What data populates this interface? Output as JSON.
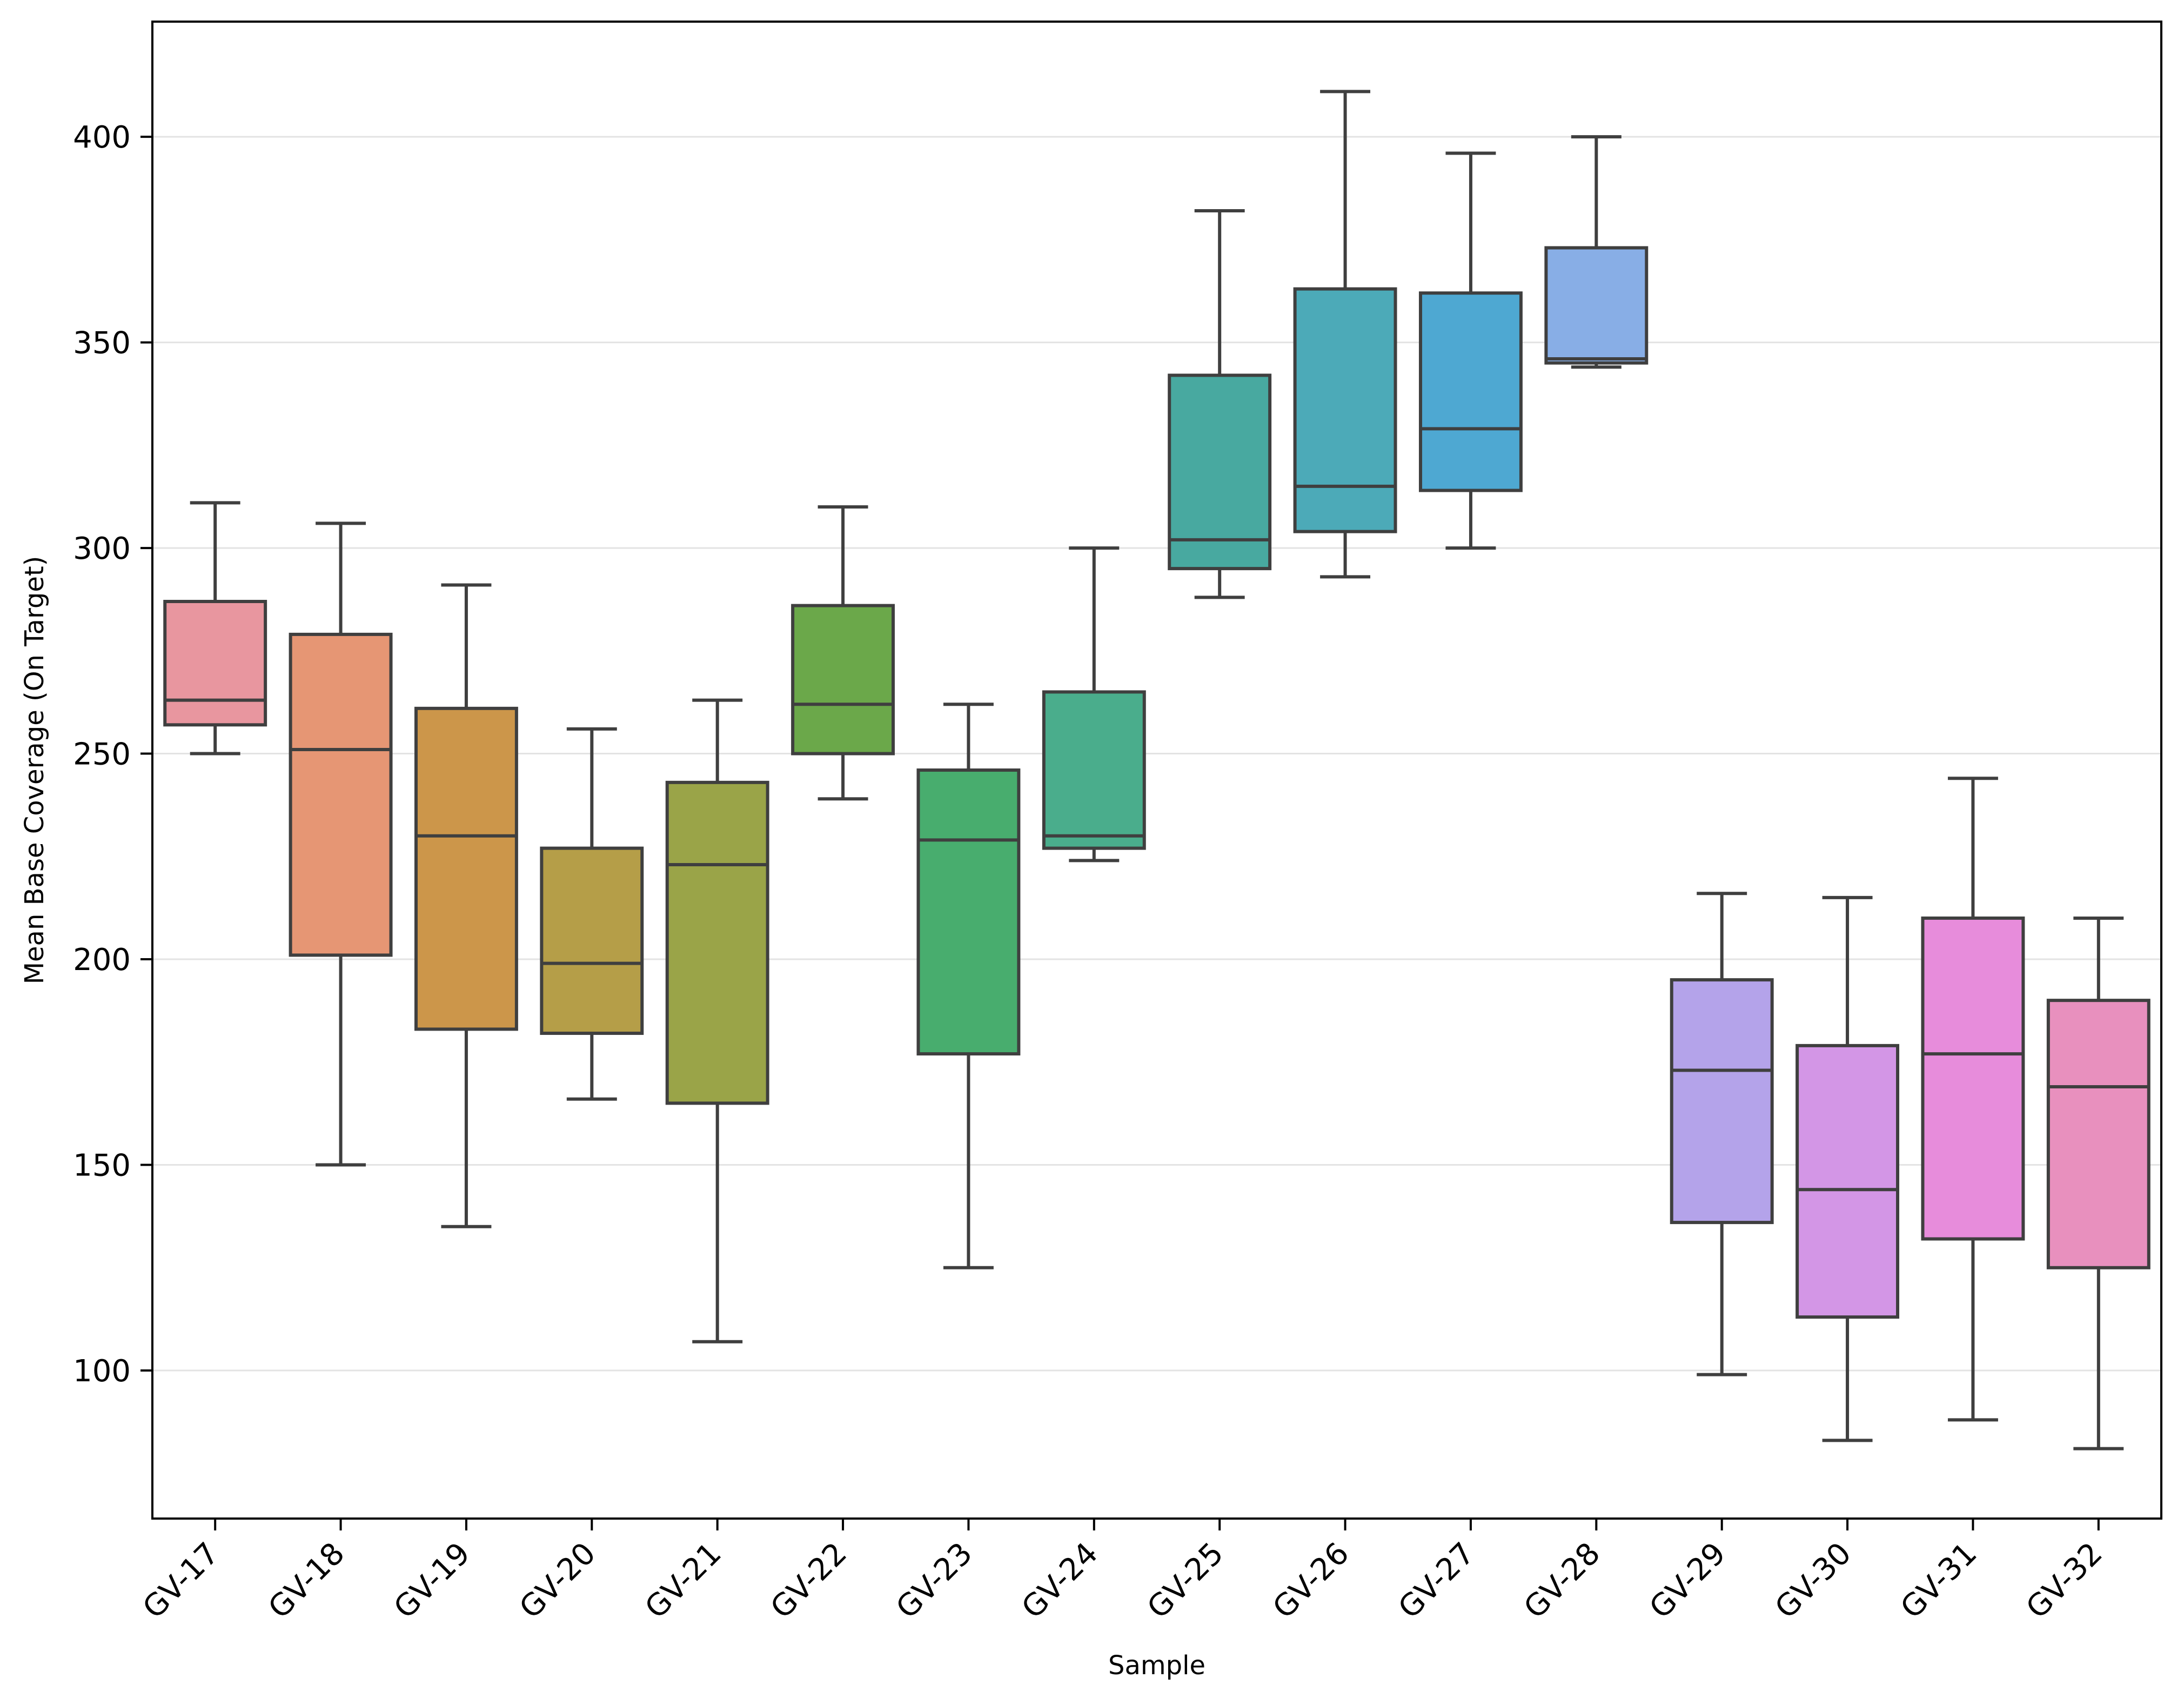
{
  "chart_data": {
    "type": "box",
    "title": "",
    "xlabel": "Sample",
    "ylabel": "Mean Base Coverage (On Target)",
    "ylim": [
      64,
      428
    ],
    "yticks": [
      100,
      150,
      200,
      250,
      300,
      350,
      400
    ],
    "grid": "horizontal",
    "legend": "none",
    "categories": [
      "GV-17",
      "GV-18",
      "GV-19",
      "GV-20",
      "GV-21",
      "GV-22",
      "GV-23",
      "GV-24",
      "GV-25",
      "GV-26",
      "GV-27",
      "GV-28",
      "GV-29",
      "GV-30",
      "GV-31",
      "GV-32"
    ],
    "boxes": [
      {
        "label": "GV-17",
        "whisker_low": 250,
        "q1": 257,
        "median": 263,
        "q3": 287,
        "whisker_high": 311,
        "color": "#E8969F"
      },
      {
        "label": "GV-18",
        "whisker_low": 150,
        "q1": 201,
        "median": 251,
        "q3": 279,
        "whisker_high": 306,
        "color": "#E69674"
      },
      {
        "label": "GV-19",
        "whisker_low": 135,
        "q1": 183,
        "median": 230,
        "q3": 261,
        "whisker_high": 291,
        "color": "#CC964A"
      },
      {
        "label": "GV-20",
        "whisker_low": 166,
        "q1": 182,
        "median": 199,
        "q3": 227,
        "whisker_high": 256,
        "color": "#B59E48"
      },
      {
        "label": "GV-21",
        "whisker_low": 107,
        "q1": 165,
        "median": 223,
        "q3": 243,
        "whisker_high": 263,
        "color": "#9AA448"
      },
      {
        "label": "GV-22",
        "whisker_low": 239,
        "q1": 250,
        "median": 262,
        "q3": 286,
        "whisker_high": 310,
        "color": "#6BA84A"
      },
      {
        "label": "GV-23",
        "whisker_low": 125,
        "q1": 177,
        "median": 229,
        "q3": 246,
        "whisker_high": 262,
        "color": "#48AD6E"
      },
      {
        "label": "GV-24",
        "whisker_low": 224,
        "q1": 227,
        "median": 230,
        "q3": 265,
        "whisker_high": 300,
        "color": "#4AAD8C"
      },
      {
        "label": "GV-25",
        "whisker_low": 288,
        "q1": 295,
        "median": 302,
        "q3": 342,
        "whisker_high": 382,
        "color": "#48A9A0"
      },
      {
        "label": "GV-26",
        "whisker_low": 293,
        "q1": 304,
        "median": 315,
        "q3": 363,
        "whisker_high": 411,
        "color": "#4CAAB8"
      },
      {
        "label": "GV-27",
        "whisker_low": 300,
        "q1": 314,
        "median": 329,
        "q3": 362,
        "whisker_high": 396,
        "color": "#4EA8D2"
      },
      {
        "label": "GV-28",
        "whisker_low": 344,
        "q1": 345,
        "median": 346,
        "q3": 373,
        "whisker_high": 400,
        "color": "#88AEE6"
      },
      {
        "label": "GV-29",
        "whisker_low": 99,
        "q1": 136,
        "median": 173,
        "q3": 195,
        "whisker_high": 216,
        "color": "#B4A3EA"
      },
      {
        "label": "GV-30",
        "whisker_low": 83,
        "q1": 113,
        "median": 144,
        "q3": 179,
        "whisker_high": 215,
        "color": "#D396E6"
      },
      {
        "label": "GV-31",
        "whisker_low": 88,
        "q1": 132,
        "median": 177,
        "q3": 210,
        "whisker_high": 244,
        "color": "#E78CDB"
      },
      {
        "label": "GV-32",
        "whisker_low": 81,
        "q1": 125,
        "median": 169,
        "q3": 190,
        "whisker_high": 210,
        "color": "#E890BE"
      }
    ]
  }
}
